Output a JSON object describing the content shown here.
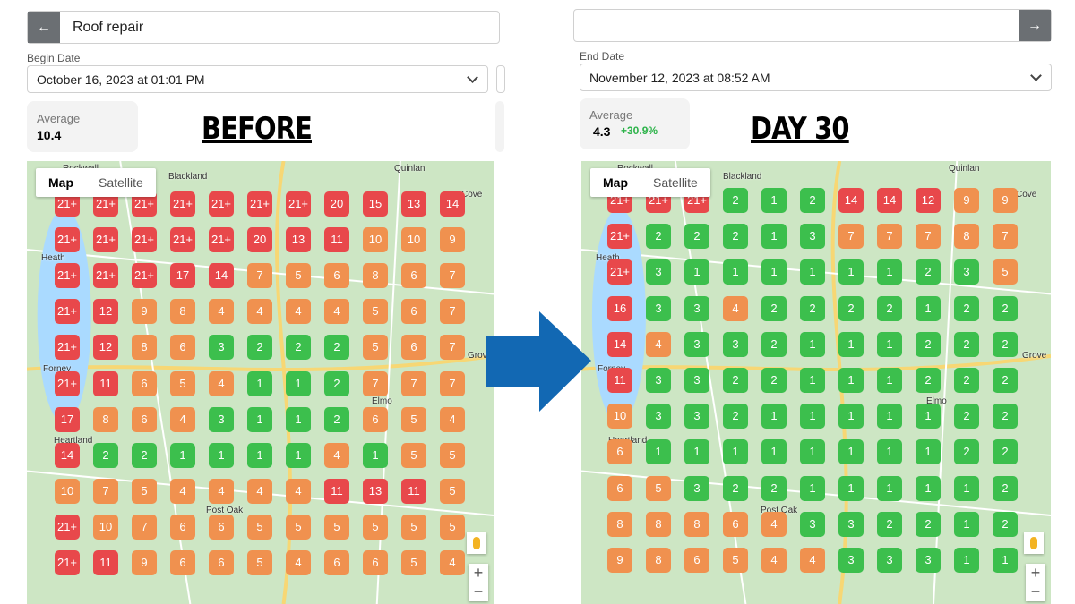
{
  "before": {
    "search": "Roof repair",
    "date_label": "Begin Date",
    "date": "October 16, 2023 at 01:01 PM",
    "average_label": "Average",
    "average": "10.4",
    "heading": "BEFORE",
    "map_tabs": [
      "Map",
      "Satellite"
    ],
    "map_labels": [
      "Rockwall",
      "Blackland",
      "Quinlan",
      "Heath",
      "Forney",
      "Elmo",
      "Heartland",
      "Post Oak",
      "Grove",
      "Cove"
    ],
    "grid": [
      [
        "21+",
        "21+",
        "21+",
        "21+",
        "21+",
        "21+",
        "21+",
        "20",
        "15",
        "13",
        "14"
      ],
      [
        "21+",
        "21+",
        "21+",
        "21+",
        "21+",
        "20",
        "13",
        "11",
        "10",
        "10",
        "9"
      ],
      [
        "21+",
        "21+",
        "21+",
        "17",
        "14",
        "7",
        "5",
        "6",
        "8",
        "6",
        "7"
      ],
      [
        "21+",
        "12",
        "9",
        "8",
        "4",
        "4",
        "4",
        "4",
        "5",
        "6",
        "7"
      ],
      [
        "21+",
        "12",
        "8",
        "6",
        "3",
        "2",
        "2",
        "2",
        "5",
        "6",
        "7"
      ],
      [
        "21+",
        "11",
        "6",
        "5",
        "4",
        "1",
        "1",
        "2",
        "7",
        "7",
        "7"
      ],
      [
        "17",
        "8",
        "6",
        "4",
        "3",
        "1",
        "1",
        "2",
        "6",
        "5",
        "4"
      ],
      [
        "14",
        "2",
        "2",
        "1",
        "1",
        "1",
        "1",
        "4",
        "1",
        "5",
        "5"
      ],
      [
        "10",
        "7",
        "5",
        "4",
        "4",
        "4",
        "4",
        "11",
        "13",
        "11",
        "5"
      ],
      [
        "21+",
        "10",
        "7",
        "6",
        "6",
        "5",
        "5",
        "5",
        "5",
        "5",
        "5"
      ],
      [
        "21+",
        "11",
        "9",
        "6",
        "6",
        "5",
        "4",
        "6",
        "6",
        "5",
        "4"
      ]
    ]
  },
  "after": {
    "date_label": "End Date",
    "date": "November 12, 2023 at 08:52 AM",
    "average_label": "Average",
    "average": "4.3",
    "change": "+30.9%",
    "heading": "DAY 30",
    "map_tabs": [
      "Map",
      "Satellite"
    ],
    "map_labels": [
      "Rockwall",
      "Blackland",
      "Quinlan",
      "Heath",
      "Forney",
      "Elmo",
      "Heartland",
      "Post Oak",
      "Grove",
      "Cove"
    ],
    "grid": [
      [
        "21+",
        "21+",
        "21+",
        "2",
        "1",
        "2",
        "14",
        "14",
        "12",
        "9",
        "9"
      ],
      [
        "21+",
        "2",
        "2",
        "2",
        "1",
        "3",
        "7",
        "7",
        "7",
        "8",
        "7"
      ],
      [
        "21+",
        "3",
        "1",
        "1",
        "1",
        "1",
        "1",
        "1",
        "2",
        "3",
        "5"
      ],
      [
        "16",
        "3",
        "3",
        "4",
        "2",
        "2",
        "2",
        "2",
        "1",
        "2",
        "2"
      ],
      [
        "14",
        "4",
        "3",
        "3",
        "2",
        "1",
        "1",
        "1",
        "2",
        "2",
        "2"
      ],
      [
        "11",
        "3",
        "3",
        "2",
        "2",
        "1",
        "1",
        "1",
        "2",
        "2",
        "2"
      ],
      [
        "10",
        "3",
        "3",
        "2",
        "1",
        "1",
        "1",
        "1",
        "1",
        "2",
        "2"
      ],
      [
        "6",
        "1",
        "1",
        "1",
        "1",
        "1",
        "1",
        "1",
        "1",
        "2",
        "2"
      ],
      [
        "6",
        "5",
        "3",
        "2",
        "2",
        "1",
        "1",
        "1",
        "1",
        "1",
        "2"
      ],
      [
        "8",
        "8",
        "8",
        "6",
        "4",
        "3",
        "3",
        "2",
        "2",
        "1",
        "2"
      ],
      [
        "9",
        "8",
        "6",
        "5",
        "4",
        "4",
        "3",
        "3",
        "3",
        "1",
        "1"
      ]
    ]
  }
}
